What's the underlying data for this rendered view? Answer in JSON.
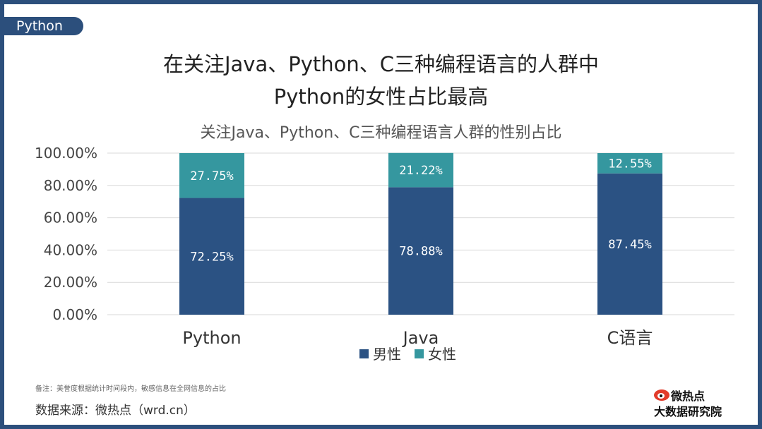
{
  "tag": "Python",
  "title_line1": "在关注Java、Python、C三种编程语言的人群中",
  "title_line2": "Python的女性占比最高",
  "footnote": "备注：美誉度根据统计时间段内，敏感信息在全网信息的占比",
  "source": "数据来源：微热点（wrd.cn）",
  "logo_top": "微热点",
  "logo_bottom": "大数据研究院",
  "colors": {
    "male": "#2b5283",
    "female": "#35979f",
    "frame": "#2c4f7c"
  },
  "chart_data": {
    "type": "bar",
    "stacked": true,
    "title": "关注Java、Python、C三种编程语言人群的性别占比",
    "categories": [
      "Python",
      "Java",
      "C语言"
    ],
    "series": [
      {
        "name": "男性",
        "values": [
          72.25,
          78.88,
          87.45
        ],
        "labels": [
          "72.25%",
          "78.88%",
          "87.45%"
        ]
      },
      {
        "name": "女性",
        "values": [
          27.75,
          21.22,
          12.55
        ],
        "labels": [
          "27.75%",
          "21.22%",
          "12.55%"
        ]
      }
    ],
    "ylim": [
      0,
      100
    ],
    "yticks": [
      "0.00%",
      "20.00%",
      "40.00%",
      "60.00%",
      "80.00%",
      "100.00%"
    ],
    "grid": true,
    "legend": "bottom"
  }
}
